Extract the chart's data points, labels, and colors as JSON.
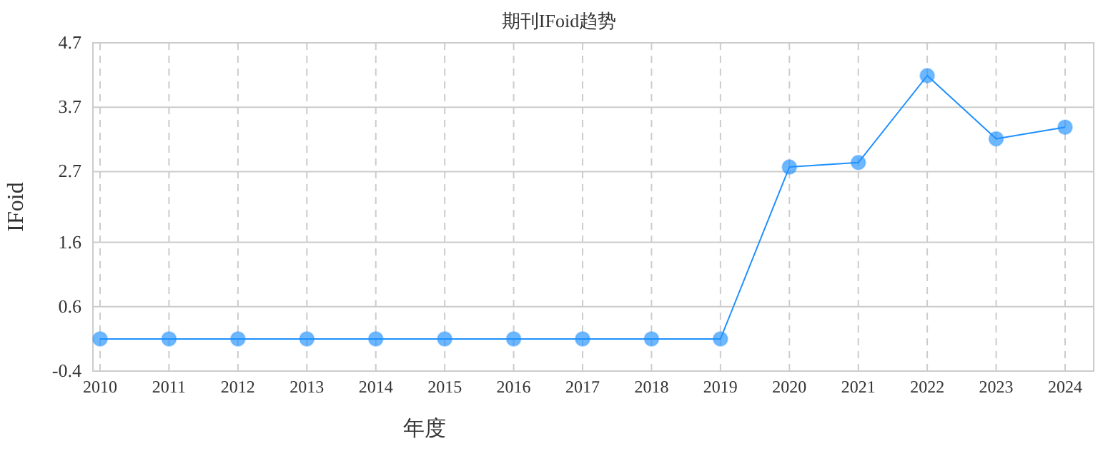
{
  "chart_data": {
    "type": "line",
    "title": "期刊IFoid趋势",
    "xlabel": "年度",
    "ylabel": "IFoid",
    "categories": [
      "2010",
      "2011",
      "2012",
      "2013",
      "2014",
      "2015",
      "2016",
      "2017",
      "2018",
      "2019",
      "2020",
      "2021",
      "2022",
      "2023",
      "2024"
    ],
    "series": [
      {
        "color": "#1e90ff",
        "values": [
          0.1,
          0.1,
          0.1,
          0.1,
          0.1,
          0.1,
          0.1,
          0.1,
          0.1,
          0.1,
          2.77,
          2.84,
          4.19,
          3.21,
          3.39
        ]
      }
    ],
    "ylim": [
      -0.4,
      4.7
    ],
    "yticks": [
      -0.4,
      0.6,
      1.6,
      2.7,
      3.7,
      4.7
    ],
    "grid": true,
    "marker": "circle"
  }
}
